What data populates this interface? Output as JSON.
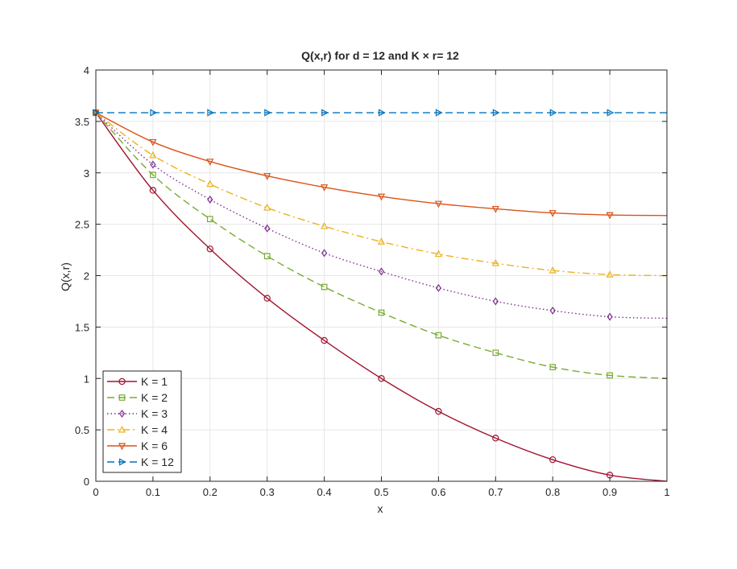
{
  "chart_data": {
    "type": "line",
    "title": "Q(x,r) for d = 12 and K × r= 12",
    "xlabel": "x",
    "ylabel": "Q(x,r)",
    "xlim": [
      0,
      1
    ],
    "ylim": [
      0,
      4
    ],
    "xticks": [
      0,
      0.1,
      0.2,
      0.3,
      0.4,
      0.5,
      0.6,
      0.7,
      0.8,
      0.9,
      1
    ],
    "xtick_labels": [
      "0",
      "0.1",
      "0.2",
      "0.3",
      "0.4",
      "0.5",
      "0.6",
      "0.7",
      "0.8",
      "0.9",
      "1"
    ],
    "yticks": [
      0,
      0.5,
      1,
      1.5,
      2,
      2.5,
      3,
      3.5,
      4
    ],
    "ytick_labels": [
      "0",
      "0.5",
      "1",
      "1.5",
      "2",
      "2.5",
      "3",
      "3.5",
      "4"
    ],
    "grid": true,
    "legend_position": "bottom-left",
    "x": [
      0,
      0.1,
      0.2,
      0.3,
      0.4,
      0.5,
      0.6,
      0.7,
      0.8,
      0.9,
      1
    ],
    "series": [
      {
        "name": "K = 1",
        "color": "#A2142F",
        "dash": "solid",
        "marker": "circle",
        "values": [
          3.585,
          2.83,
          2.26,
          1.78,
          1.37,
          1.0,
          0.68,
          0.42,
          0.21,
          0.06,
          0.0
        ]
      },
      {
        "name": "K = 2",
        "color": "#77AC30",
        "dash": "dashed",
        "marker": "square",
        "values": [
          3.585,
          2.98,
          2.55,
          2.19,
          1.89,
          1.64,
          1.42,
          1.25,
          1.11,
          1.03,
          1.0
        ]
      },
      {
        "name": "K = 3",
        "color": "#7E2F8E",
        "dash": "dotted",
        "marker": "diamond",
        "values": [
          3.585,
          3.08,
          2.74,
          2.46,
          2.22,
          2.04,
          1.88,
          1.75,
          1.66,
          1.6,
          1.585
        ]
      },
      {
        "name": "K = 4",
        "color": "#EDB120",
        "dash": "dashdot",
        "marker": "triangle-up",
        "values": [
          3.585,
          3.17,
          2.89,
          2.66,
          2.48,
          2.33,
          2.21,
          2.12,
          2.05,
          2.01,
          2.0
        ]
      },
      {
        "name": "K = 6",
        "color": "#D95319",
        "dash": "solid",
        "marker": "triangle-down",
        "values": [
          3.585,
          3.3,
          3.11,
          2.97,
          2.86,
          2.77,
          2.7,
          2.65,
          2.61,
          2.59,
          2.585
        ]
      },
      {
        "name": "K = 12",
        "color": "#0072BD",
        "dash": "dashed",
        "marker": "triangle-right",
        "values": [
          3.585,
          3.585,
          3.585,
          3.585,
          3.585,
          3.585,
          3.585,
          3.585,
          3.585,
          3.585,
          3.585
        ]
      }
    ]
  }
}
